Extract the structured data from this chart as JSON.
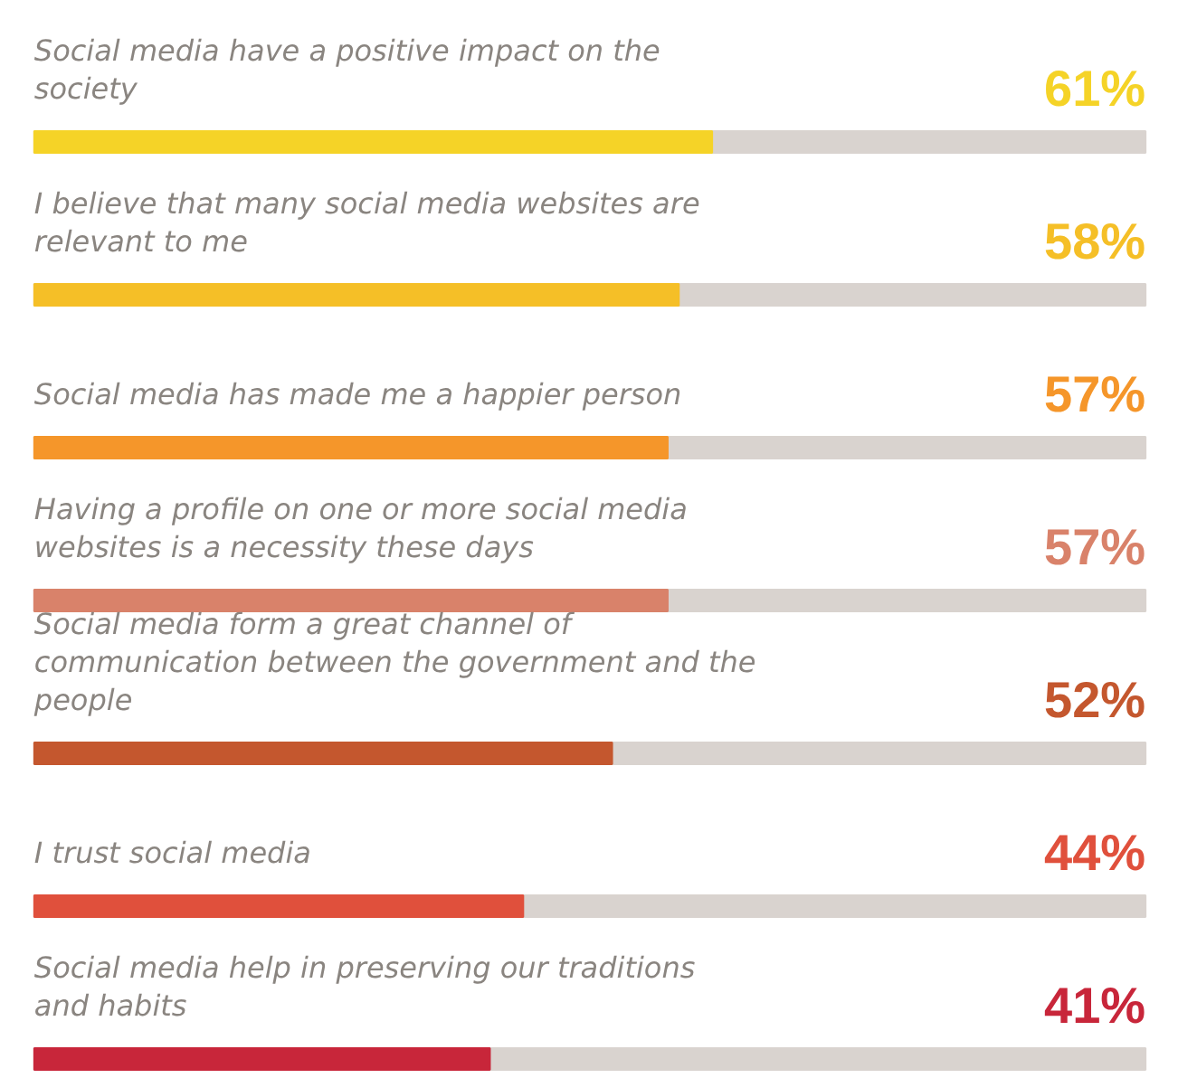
{
  "chart_data": {
    "type": "bar",
    "orientation": "horizontal",
    "xlim": [
      0,
      100
    ],
    "tick_labels": false,
    "grid": false,
    "categories": [
      "Social media have a positive impact on the society",
      "I believe that many social media websites are relevant to me",
      "Social media has made me a happier person",
      "Having a profile on one or more social media websites is a necessity these days",
      "Social media form a great channel of communication between the government and the people",
      "I trust social media",
      "Social media help in preserving our traditions and habits"
    ],
    "values": [
      61,
      58,
      57,
      57,
      52,
      44,
      41
    ],
    "value_labels": [
      "61%",
      "58%",
      "57%",
      "57%",
      "52%",
      "44%",
      "41%"
    ],
    "colors": [
      "#f5d327",
      "#f5bf27",
      "#f5962a",
      "#d9826a",
      "#c4572e",
      "#e0503c",
      "#c8263a"
    ]
  }
}
